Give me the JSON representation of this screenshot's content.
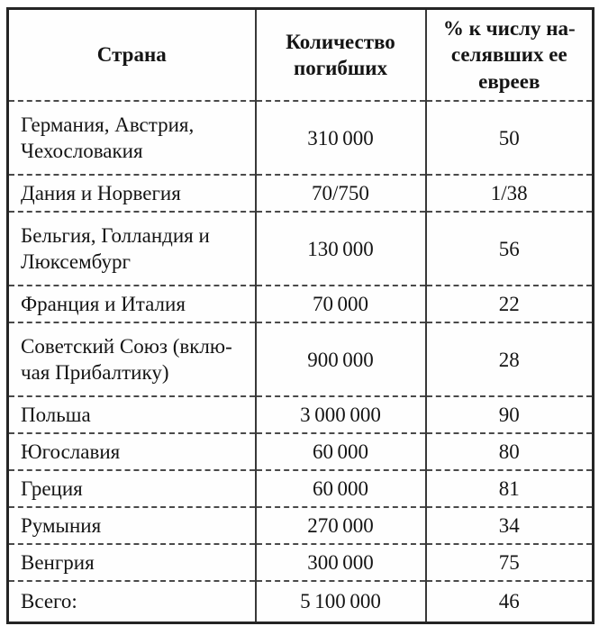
{
  "colors": {
    "outer_border": "#242424",
    "inner_border": "#383838",
    "text": "#141414",
    "background": "#fefefe"
  },
  "table": {
    "columns": [
      {
        "label": "Страна"
      },
      {
        "label": "Количество\nпогибших"
      },
      {
        "label": "% к числу на-\nселявших ее\nевреев"
      }
    ],
    "rows": [
      {
        "country": "Германия, Австрия,\nЧехословакия",
        "deaths": "310 000",
        "percent": "50"
      },
      {
        "country": "Дания и Норвегия",
        "deaths": "70/750",
        "percent": "1/38"
      },
      {
        "country": "Бельгия, Голландия и\nЛюксембург",
        "deaths": "130 000",
        "percent": "56"
      },
      {
        "country": "Франция и Италия",
        "deaths": "70 000",
        "percent": "22"
      },
      {
        "country": "Советский Союз (вклю-\nчая Прибалтику)",
        "deaths": "900 000",
        "percent": "28"
      },
      {
        "country": "Польша",
        "deaths": "3 000 000",
        "percent": "90"
      },
      {
        "country": "Югославия",
        "deaths": "60 000",
        "percent": "80"
      },
      {
        "country": "Греция",
        "deaths": "60 000",
        "percent": "81"
      },
      {
        "country": "Румыния",
        "deaths": "270 000",
        "percent": "34"
      },
      {
        "country": "Венгрия",
        "deaths": "300 000",
        "percent": "75"
      },
      {
        "country": "Всего:",
        "deaths": "5 100 000",
        "percent": "46"
      }
    ]
  }
}
